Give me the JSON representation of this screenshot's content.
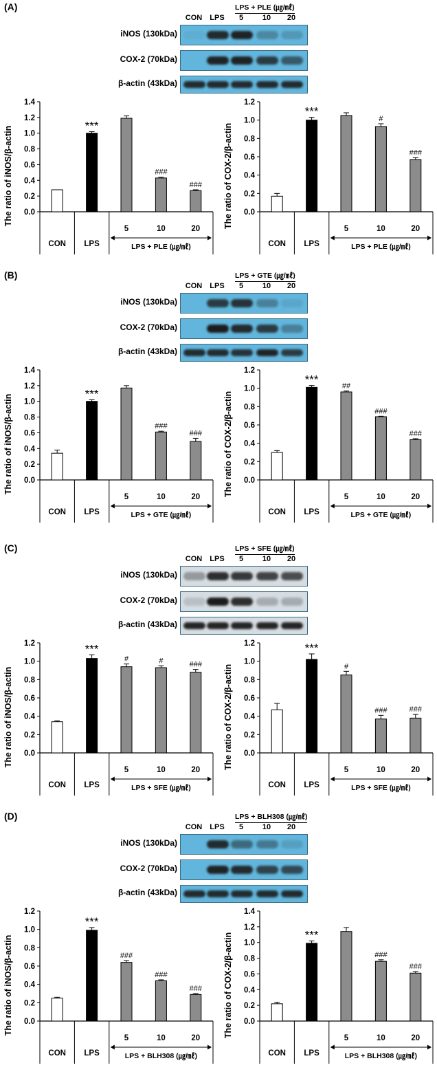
{
  "colors": {
    "con": "#ffffff",
    "lps": "#000000",
    "treat": "#8c8c8c",
    "band": "#1c1c1c",
    "blue_membrane": "#62b6dd",
    "grey_membrane": "#d6dde2"
  },
  "panels": [
    {
      "label": "(A)",
      "extract": "PLE",
      "treat_header": "LPS + PLE (㎍/㎖)",
      "lanes": [
        "CON",
        "LPS",
        "5",
        "10",
        "20"
      ],
      "blots": [
        {
          "label": "iNOS (130kDa)",
          "membrane": "blue",
          "intensity": [
            0.05,
            0.9,
            0.95,
            0.3,
            0.2
          ]
        },
        {
          "label": "COX-2 (70kDa)",
          "membrane": "blue",
          "intensity": [
            0.0,
            0.95,
            0.95,
            0.8,
            0.6
          ]
        },
        {
          "label": "β-actin (43kDa)",
          "membrane": "blue",
          "intensity": [
            0.9,
            0.9,
            0.9,
            0.9,
            0.9
          ]
        }
      ]
    },
    {
      "label": "(B)",
      "extract": "GTE",
      "treat_header": "LPS + GTE (㎍/㎖)",
      "lanes": [
        "CON",
        "LPS",
        "5",
        "10",
        "20"
      ],
      "blots": [
        {
          "label": "iNOS (130kDa)",
          "membrane": "blue",
          "intensity": [
            0.0,
            0.8,
            0.85,
            0.35,
            0.1
          ]
        },
        {
          "label": "COX-2 (70kDa)",
          "membrane": "blue",
          "intensity": [
            0.0,
            1.0,
            0.9,
            0.8,
            0.35
          ]
        },
        {
          "label": "β-actin (43kDa)",
          "membrane": "blue",
          "intensity": [
            0.9,
            0.9,
            0.85,
            0.95,
            0.8
          ]
        }
      ]
    },
    {
      "label": "(C)",
      "extract": "SFE",
      "treat_header": "LPS + SFE (㎍/㎖)",
      "lanes": [
        "CON",
        "LPS",
        "5",
        "10",
        "20"
      ],
      "blots": [
        {
          "label": "iNOS (130kDa)",
          "membrane": "grey",
          "intensity": [
            0.35,
            0.9,
            0.85,
            0.8,
            0.75
          ]
        },
        {
          "label": "COX-2 (70kDa)",
          "membrane": "grey",
          "intensity": [
            0.15,
            1.0,
            0.9,
            0.25,
            0.25
          ]
        },
        {
          "label": "β-actin (43kDa)",
          "membrane": "grey",
          "intensity": [
            0.95,
            0.95,
            0.95,
            0.95,
            0.95
          ]
        }
      ]
    },
    {
      "label": "(D)",
      "extract": "BLH308",
      "treat_header": "LPS + BLH308 (㎍/㎖)",
      "lanes": [
        "CON",
        "LPS",
        "5",
        "10",
        "20"
      ],
      "blots": [
        {
          "label": "iNOS (130kDa)",
          "membrane": "blue",
          "intensity": [
            0.0,
            0.9,
            0.5,
            0.4,
            0.15
          ]
        },
        {
          "label": "COX-2 (70kDa)",
          "membrane": "blue",
          "intensity": [
            0.0,
            0.95,
            0.9,
            0.75,
            0.7
          ]
        },
        {
          "label": "β-actin (43kDa)",
          "membrane": "blue",
          "intensity": [
            0.9,
            0.9,
            0.9,
            0.9,
            0.9
          ]
        }
      ]
    }
  ],
  "chart_data": [
    {
      "panel": "(A)",
      "type": "bar",
      "ylabel": "The ratio of iNOS/β-actin",
      "ylim": [
        0,
        1.4
      ],
      "yticks": [
        "0.0",
        "0.2",
        "0.4",
        "0.6",
        "0.8",
        "1.0",
        "1.2",
        "1.4"
      ],
      "categories": [
        "CON",
        "LPS",
        "5",
        "10",
        "20"
      ],
      "values": [
        0.28,
        1.0,
        1.19,
        0.43,
        0.27
      ],
      "errors": [
        0.0,
        0.02,
        0.03,
        0.01,
        0.01
      ],
      "annotations": [
        "",
        "***",
        "",
        "###",
        "###"
      ],
      "group_labels": {
        "con": "CON",
        "lps": "LPS",
        "treat": "LPS + PLE (㎍/㎖)"
      }
    },
    {
      "panel": "(A)",
      "type": "bar",
      "ylabel": "The ratio of COX-2/β-actin",
      "ylim": [
        0,
        1.2
      ],
      "yticks": [
        "0.0",
        "0.2",
        "0.4",
        "0.6",
        "0.8",
        "1.0",
        "1.2"
      ],
      "categories": [
        "CON",
        "LPS",
        "5",
        "10",
        "20"
      ],
      "values": [
        0.17,
        1.0,
        1.05,
        0.93,
        0.57
      ],
      "errors": [
        0.03,
        0.03,
        0.03,
        0.03,
        0.02
      ],
      "annotations": [
        "",
        "***",
        "",
        "#",
        "###"
      ],
      "group_labels": {
        "con": "CON",
        "lps": "LPS",
        "treat": "LPS + PLE (㎍/㎖)"
      }
    },
    {
      "panel": "(B)",
      "type": "bar",
      "ylabel": "The ratio of iNOS/β-actin",
      "ylim": [
        0,
        1.4
      ],
      "yticks": [
        "0.0",
        "0.2",
        "0.4",
        "0.6",
        "0.8",
        "1.0",
        "1.2",
        "1.4"
      ],
      "categories": [
        "CON",
        "LPS",
        "5",
        "10",
        "20"
      ],
      "values": [
        0.34,
        1.0,
        1.17,
        0.61,
        0.49
      ],
      "errors": [
        0.04,
        0.02,
        0.03,
        0.01,
        0.04
      ],
      "annotations": [
        "",
        "***",
        "",
        "###",
        "###"
      ],
      "group_labels": {
        "con": "CON",
        "lps": "LPS",
        "treat": "LPS + GTE (㎍/㎖)"
      }
    },
    {
      "panel": "(B)",
      "type": "bar",
      "ylabel": "The ratio of COX-2/β-actin",
      "ylim": [
        0,
        1.2
      ],
      "yticks": [
        "0.0",
        "0.2",
        "0.4",
        "0.6",
        "0.8",
        "1.0",
        "1.2"
      ],
      "categories": [
        "CON",
        "LPS",
        "5",
        "10",
        "20"
      ],
      "values": [
        0.3,
        1.01,
        0.96,
        0.69,
        0.44
      ],
      "errors": [
        0.02,
        0.02,
        0.01,
        0.005,
        0.01
      ],
      "annotations": [
        "",
        "***",
        "##",
        "###",
        "###"
      ],
      "group_labels": {
        "con": "CON",
        "lps": "LPS",
        "treat": "LPS + GTE (㎍/㎖)"
      }
    },
    {
      "panel": "(C)",
      "type": "bar",
      "ylabel": "The ratio of iNOS/β-actin",
      "ylim": [
        0,
        1.2
      ],
      "yticks": [
        "0.0",
        "0.2",
        "0.4",
        "0.6",
        "0.8",
        "1.0",
        "1.2"
      ],
      "categories": [
        "CON",
        "LPS",
        "5",
        "10",
        "20"
      ],
      "values": [
        0.34,
        1.03,
        0.94,
        0.93,
        0.88
      ],
      "errors": [
        0.01,
        0.04,
        0.03,
        0.02,
        0.03
      ],
      "annotations": [
        "",
        "***",
        "#",
        "#",
        "###"
      ],
      "group_labels": {
        "con": "CON",
        "lps": "LPS",
        "treat": "LPS + SFE (㎍/㎖)"
      }
    },
    {
      "panel": "(C)",
      "type": "bar",
      "ylabel": "The ratio of COX-2/β-actin",
      "ylim": [
        0,
        1.2
      ],
      "yticks": [
        "0.0",
        "0.2",
        "0.4",
        "0.6",
        "0.8",
        "1.0",
        "1.2"
      ],
      "categories": [
        "CON",
        "LPS",
        "5",
        "10",
        "20"
      ],
      "values": [
        0.47,
        1.02,
        0.85,
        0.37,
        0.38
      ],
      "errors": [
        0.07,
        0.06,
        0.04,
        0.04,
        0.04
      ],
      "annotations": [
        "",
        "***",
        "#",
        "###",
        "###"
      ],
      "group_labels": {
        "con": "CON",
        "lps": "LPS",
        "treat": "LPS + SFE (㎍/㎖)"
      }
    },
    {
      "panel": "(D)",
      "type": "bar",
      "ylabel": "The ratio of iNOS/β-actin",
      "ylim": [
        0,
        1.2
      ],
      "yticks": [
        "0.0",
        "0.2",
        "0.4",
        "0.6",
        "0.8",
        "1.0",
        "1.2"
      ],
      "categories": [
        "CON",
        "LPS",
        "5",
        "10",
        "20"
      ],
      "values": [
        0.25,
        0.99,
        0.64,
        0.44,
        0.29
      ],
      "errors": [
        0.01,
        0.03,
        0.02,
        0.01,
        0.01
      ],
      "annotations": [
        "",
        "***",
        "###",
        "###",
        "###"
      ],
      "group_labels": {
        "con": "CON",
        "lps": "LPS",
        "treat": "LPS + BLH308 (㎍/㎖)"
      }
    },
    {
      "panel": "(D)",
      "type": "bar",
      "ylabel": "The ratio of COX-2/β-actin",
      "ylim": [
        0,
        1.4
      ],
      "yticks": [
        "0.0",
        "0.2",
        "0.4",
        "0.6",
        "0.8",
        "1.0",
        "1.2",
        "1.4"
      ],
      "categories": [
        "CON",
        "LPS",
        "5",
        "10",
        "20"
      ],
      "values": [
        0.22,
        0.99,
        1.14,
        0.76,
        0.61
      ],
      "errors": [
        0.02,
        0.03,
        0.05,
        0.02,
        0.02
      ],
      "annotations": [
        "",
        "***",
        "",
        "###",
        "###"
      ],
      "group_labels": {
        "con": "CON",
        "lps": "LPS",
        "treat": "LPS + BLH308 (㎍/㎖)"
      }
    }
  ]
}
